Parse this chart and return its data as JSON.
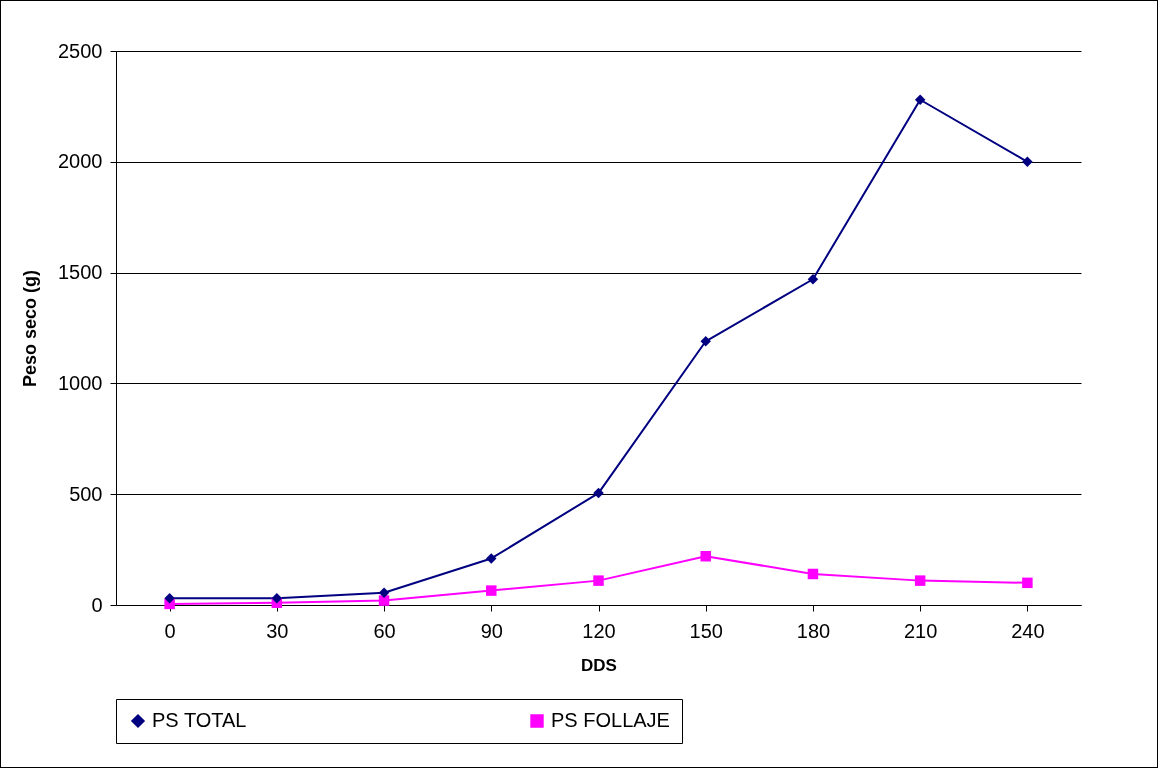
{
  "chart_data": {
    "type": "line",
    "xlabel": "DDS",
    "ylabel": "Peso seco (g)",
    "categories": [
      "0",
      "30",
      "60",
      "90",
      "120",
      "150",
      "180",
      "210",
      "240"
    ],
    "series": [
      {
        "name": "PS TOTAL",
        "color": "#000080",
        "marker": "diamond",
        "values": [
          30,
          30,
          55,
          210,
          505,
          1190,
          1470,
          2280,
          2000
        ]
      },
      {
        "name": "PS FOLLAJE",
        "color": "#ff00ff",
        "marker": "square",
        "values": [
          5,
          10,
          20,
          65,
          110,
          220,
          140,
          110,
          100
        ]
      }
    ],
    "ylim": [
      0,
      2500
    ],
    "yticks": [
      0,
      500,
      1000,
      1500,
      2000,
      2500
    ],
    "grid": "y",
    "legend": "bottom"
  }
}
